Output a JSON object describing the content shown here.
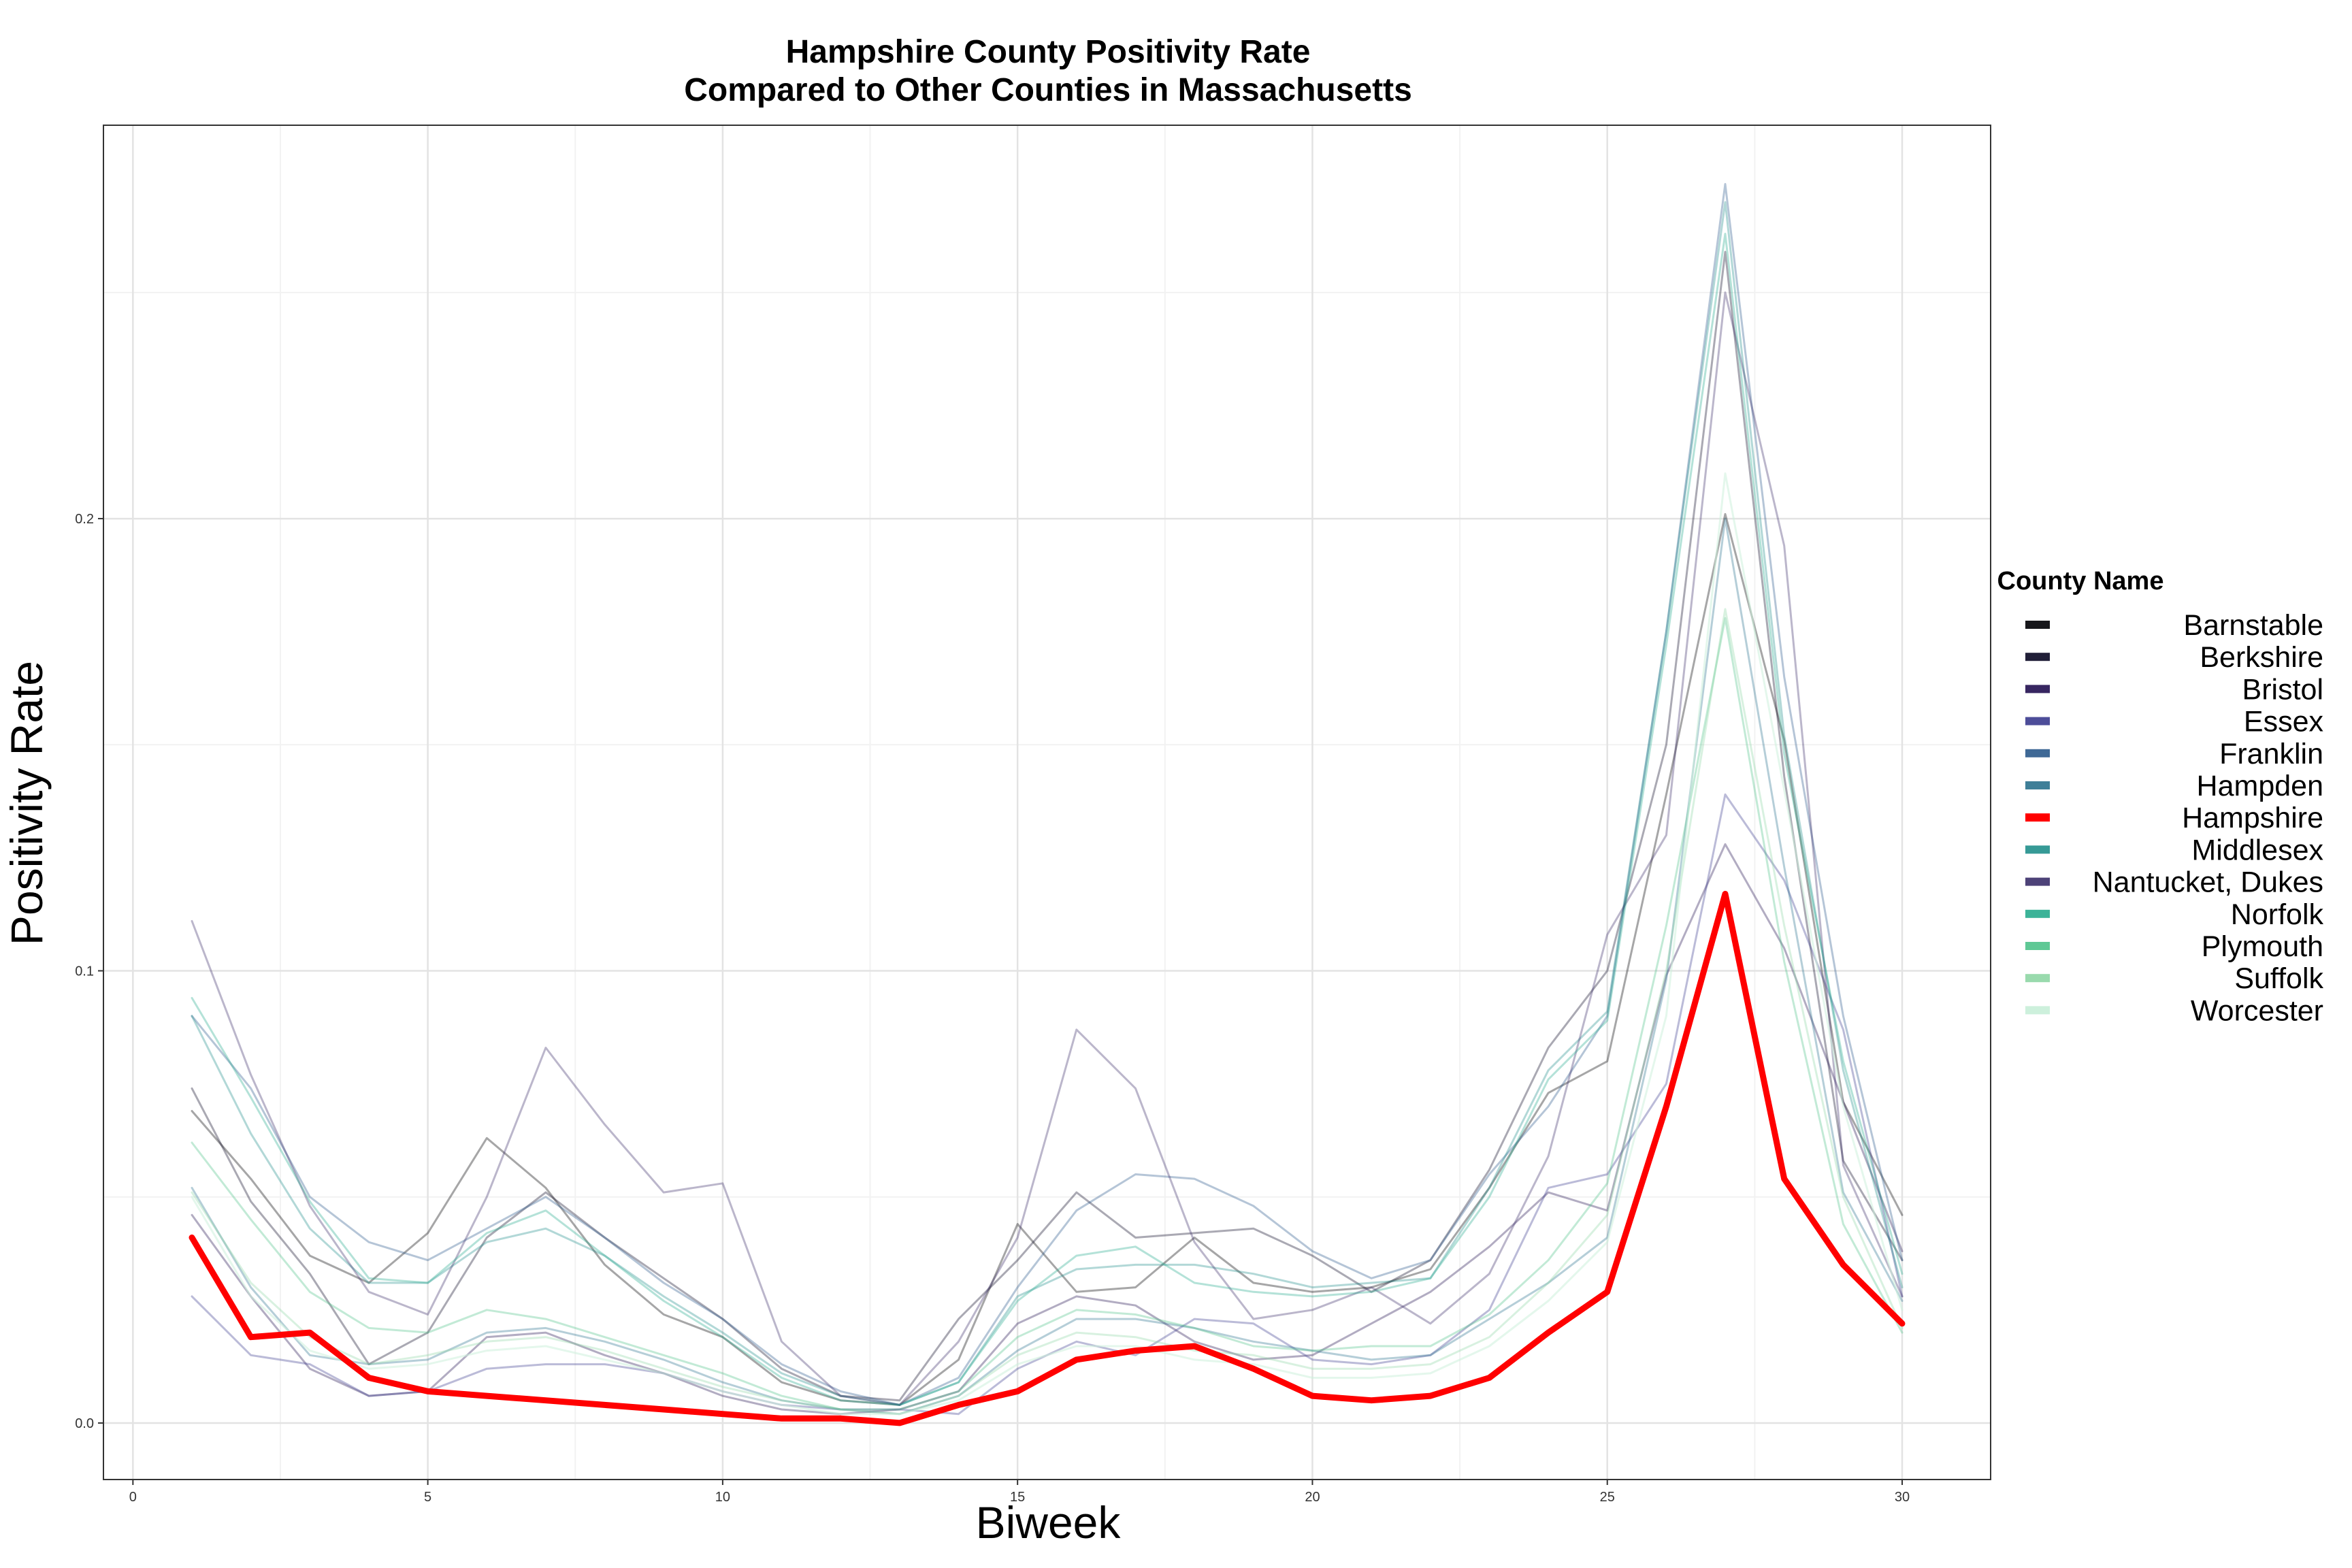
{
  "chart_data": {
    "type": "line",
    "title_lines": [
      "Hampshire County Positivity Rate",
      "Compared to Other Counties in Massachusetts"
    ],
    "xlabel": "Biweek",
    "ylabel": "Positivity Rate",
    "xlim": [
      -0.5,
      31.5
    ],
    "ylim": [
      -0.0125,
      0.287
    ],
    "x_ticks": [
      0,
      5,
      10,
      15,
      20,
      25,
      30
    ],
    "x_tick_labels": [
      "0",
      "5",
      "10",
      "15",
      "20",
      "25",
      "30"
    ],
    "y_ticks": [
      0.0,
      0.1,
      0.2
    ],
    "y_tick_labels": [
      "0.0",
      "0.1",
      "0.2"
    ],
    "grid": true,
    "legend": {
      "title": "County Name",
      "placement": "right"
    },
    "x": [
      1,
      2,
      3,
      4,
      5,
      6,
      7,
      8,
      9,
      10,
      11,
      12,
      13,
      14,
      15,
      16,
      17,
      18,
      19,
      20,
      21,
      22,
      23,
      24,
      25,
      26,
      27,
      28,
      29,
      30
    ],
    "series": [
      {
        "name": "Barnstable",
        "color": "#000004",
        "opacity": 0.35,
        "width": 3,
        "values": [
          0.069,
          0.054,
          0.037,
          0.031,
          0.042,
          0.063,
          0.052,
          0.035,
          0.024,
          0.019,
          0.009,
          0.005,
          0.004,
          0.014,
          0.044,
          0.029,
          0.03,
          0.041,
          0.031,
          0.029,
          0.03,
          0.034,
          0.052,
          0.073,
          0.08,
          0.139,
          0.201,
          0.151,
          0.071,
          0.046
        ]
      },
      {
        "name": "Berkshire",
        "color": "#0b0924",
        "opacity": 0.35,
        "width": 3,
        "values": [
          0.074,
          0.049,
          0.033,
          0.013,
          0.02,
          0.041,
          0.051,
          0.041,
          0.032,
          0.023,
          0.012,
          0.006,
          0.005,
          0.023,
          0.036,
          0.051,
          0.041,
          0.042,
          0.043,
          0.037,
          0.029,
          0.036,
          0.056,
          0.083,
          0.1,
          0.15,
          0.259,
          0.143,
          0.058,
          0.036
        ]
      },
      {
        "name": "Bristol",
        "color": "#231151",
        "opacity": 0.35,
        "width": 3,
        "values": [
          0.046,
          0.028,
          0.012,
          0.006,
          0.007,
          0.019,
          0.02,
          0.015,
          0.011,
          0.006,
          0.003,
          0.002,
          0.003,
          0.007,
          0.022,
          0.028,
          0.026,
          0.018,
          0.014,
          0.015,
          0.022,
          0.029,
          0.039,
          0.051,
          0.047,
          0.099,
          0.128,
          0.105,
          0.071,
          0.038
        ]
      },
      {
        "name": "Essex",
        "color": "#3b3b8f",
        "opacity": 0.35,
        "width": 3,
        "values": [
          0.028,
          0.015,
          0.013,
          0.006,
          0.007,
          0.012,
          0.013,
          0.013,
          0.011,
          0.007,
          0.004,
          0.003,
          0.003,
          0.002,
          0.012,
          0.018,
          0.015,
          0.023,
          0.022,
          0.014,
          0.013,
          0.015,
          0.025,
          0.052,
          0.055,
          0.075,
          0.139,
          0.12,
          0.087,
          0.028
        ]
      },
      {
        "name": "Franklin",
        "color": "#2c5a8c",
        "opacity": 0.35,
        "width": 3,
        "values": [
          0.09,
          0.074,
          0.05,
          0.04,
          0.036,
          0.043,
          0.05,
          0.041,
          0.031,
          0.023,
          0.013,
          0.007,
          0.004,
          0.01,
          0.03,
          0.047,
          0.055,
          0.054,
          0.048,
          0.038,
          0.032,
          0.036,
          0.055,
          0.07,
          0.09,
          0.175,
          0.274,
          0.165,
          0.09,
          0.036
        ]
      },
      {
        "name": "Hampden",
        "color": "#2c728e",
        "opacity": 0.35,
        "width": 3,
        "values": [
          0.052,
          0.03,
          0.015,
          0.013,
          0.014,
          0.02,
          0.021,
          0.018,
          0.014,
          0.009,
          0.005,
          0.003,
          0.002,
          0.006,
          0.016,
          0.023,
          0.023,
          0.021,
          0.018,
          0.016,
          0.014,
          0.015,
          0.023,
          0.031,
          0.041,
          0.098,
          0.2,
          0.123,
          0.051,
          0.027
        ]
      },
      {
        "name": "Hampshire",
        "color": "#ff0000",
        "opacity": 1.0,
        "width": 9,
        "values": [
          0.041,
          0.019,
          0.02,
          0.01,
          0.007,
          0.006,
          0.005,
          0.004,
          0.003,
          0.002,
          0.001,
          0.001,
          0.0,
          0.004,
          0.007,
          0.014,
          0.016,
          0.017,
          0.012,
          0.006,
          0.005,
          0.006,
          0.01,
          0.02,
          0.029,
          0.07,
          0.117,
          0.054,
          0.035,
          0.022
        ]
      },
      {
        "name": "Middlesex",
        "color": "#22908c",
        "opacity": 0.35,
        "width": 3,
        "values": [
          0.09,
          0.064,
          0.043,
          0.031,
          0.031,
          0.04,
          0.043,
          0.037,
          0.028,
          0.02,
          0.011,
          0.006,
          0.004,
          0.009,
          0.028,
          0.034,
          0.035,
          0.035,
          0.033,
          0.03,
          0.031,
          0.032,
          0.052,
          0.078,
          0.091,
          0.175,
          0.27,
          0.152,
          0.078,
          0.03
        ]
      },
      {
        "name": "Nantucket, Dukes",
        "color": "#3b2f6b",
        "opacity": 0.35,
        "width": 3,
        "values": [
          0.111,
          0.077,
          0.048,
          0.029,
          0.024,
          0.05,
          0.083,
          0.066,
          0.051,
          0.053,
          0.018,
          0.006,
          0.004,
          0.018,
          0.041,
          0.087,
          0.074,
          0.04,
          0.023,
          0.025,
          0.03,
          0.022,
          0.033,
          0.059,
          0.108,
          0.13,
          0.25,
          0.194,
          0.057,
          0.028
        ]
      },
      {
        "name": "Norfolk",
        "color": "#29ab8e",
        "opacity": 0.35,
        "width": 3,
        "values": [
          0.094,
          0.072,
          0.049,
          0.032,
          0.031,
          0.042,
          0.047,
          0.037,
          0.027,
          0.019,
          0.01,
          0.005,
          0.004,
          0.009,
          0.027,
          0.037,
          0.039,
          0.031,
          0.029,
          0.028,
          0.029,
          0.032,
          0.05,
          0.076,
          0.089,
          0.172,
          0.263,
          0.148,
          0.08,
          0.033
        ]
      },
      {
        "name": "Plymouth",
        "color": "#4fc38a",
        "opacity": 0.35,
        "width": 3,
        "values": [
          0.062,
          0.045,
          0.029,
          0.021,
          0.02,
          0.025,
          0.023,
          0.019,
          0.015,
          0.011,
          0.006,
          0.003,
          0.003,
          0.007,
          0.019,
          0.025,
          0.024,
          0.021,
          0.017,
          0.016,
          0.017,
          0.017,
          0.024,
          0.036,
          0.053,
          0.11,
          0.178,
          0.102,
          0.044,
          0.02
        ]
      },
      {
        "name": "Suffolk",
        "color": "#8fd6a5",
        "opacity": 0.35,
        "width": 3,
        "values": [
          0.051,
          0.031,
          0.019,
          0.013,
          0.015,
          0.018,
          0.019,
          0.016,
          0.012,
          0.008,
          0.005,
          0.003,
          0.002,
          0.006,
          0.015,
          0.02,
          0.019,
          0.016,
          0.015,
          0.012,
          0.012,
          0.013,
          0.019,
          0.031,
          0.046,
          0.1,
          0.18,
          0.11,
          0.05,
          0.021
        ]
      },
      {
        "name": "Worcester",
        "color": "#cdf0dc",
        "opacity": 0.55,
        "width": 3,
        "values": [
          0.05,
          0.028,
          0.016,
          0.012,
          0.013,
          0.016,
          0.017,
          0.014,
          0.011,
          0.007,
          0.004,
          0.002,
          0.002,
          0.005,
          0.013,
          0.017,
          0.017,
          0.014,
          0.013,
          0.01,
          0.01,
          0.011,
          0.017,
          0.027,
          0.04,
          0.09,
          0.21,
          0.14,
          0.07,
          0.025
        ]
      }
    ]
  }
}
